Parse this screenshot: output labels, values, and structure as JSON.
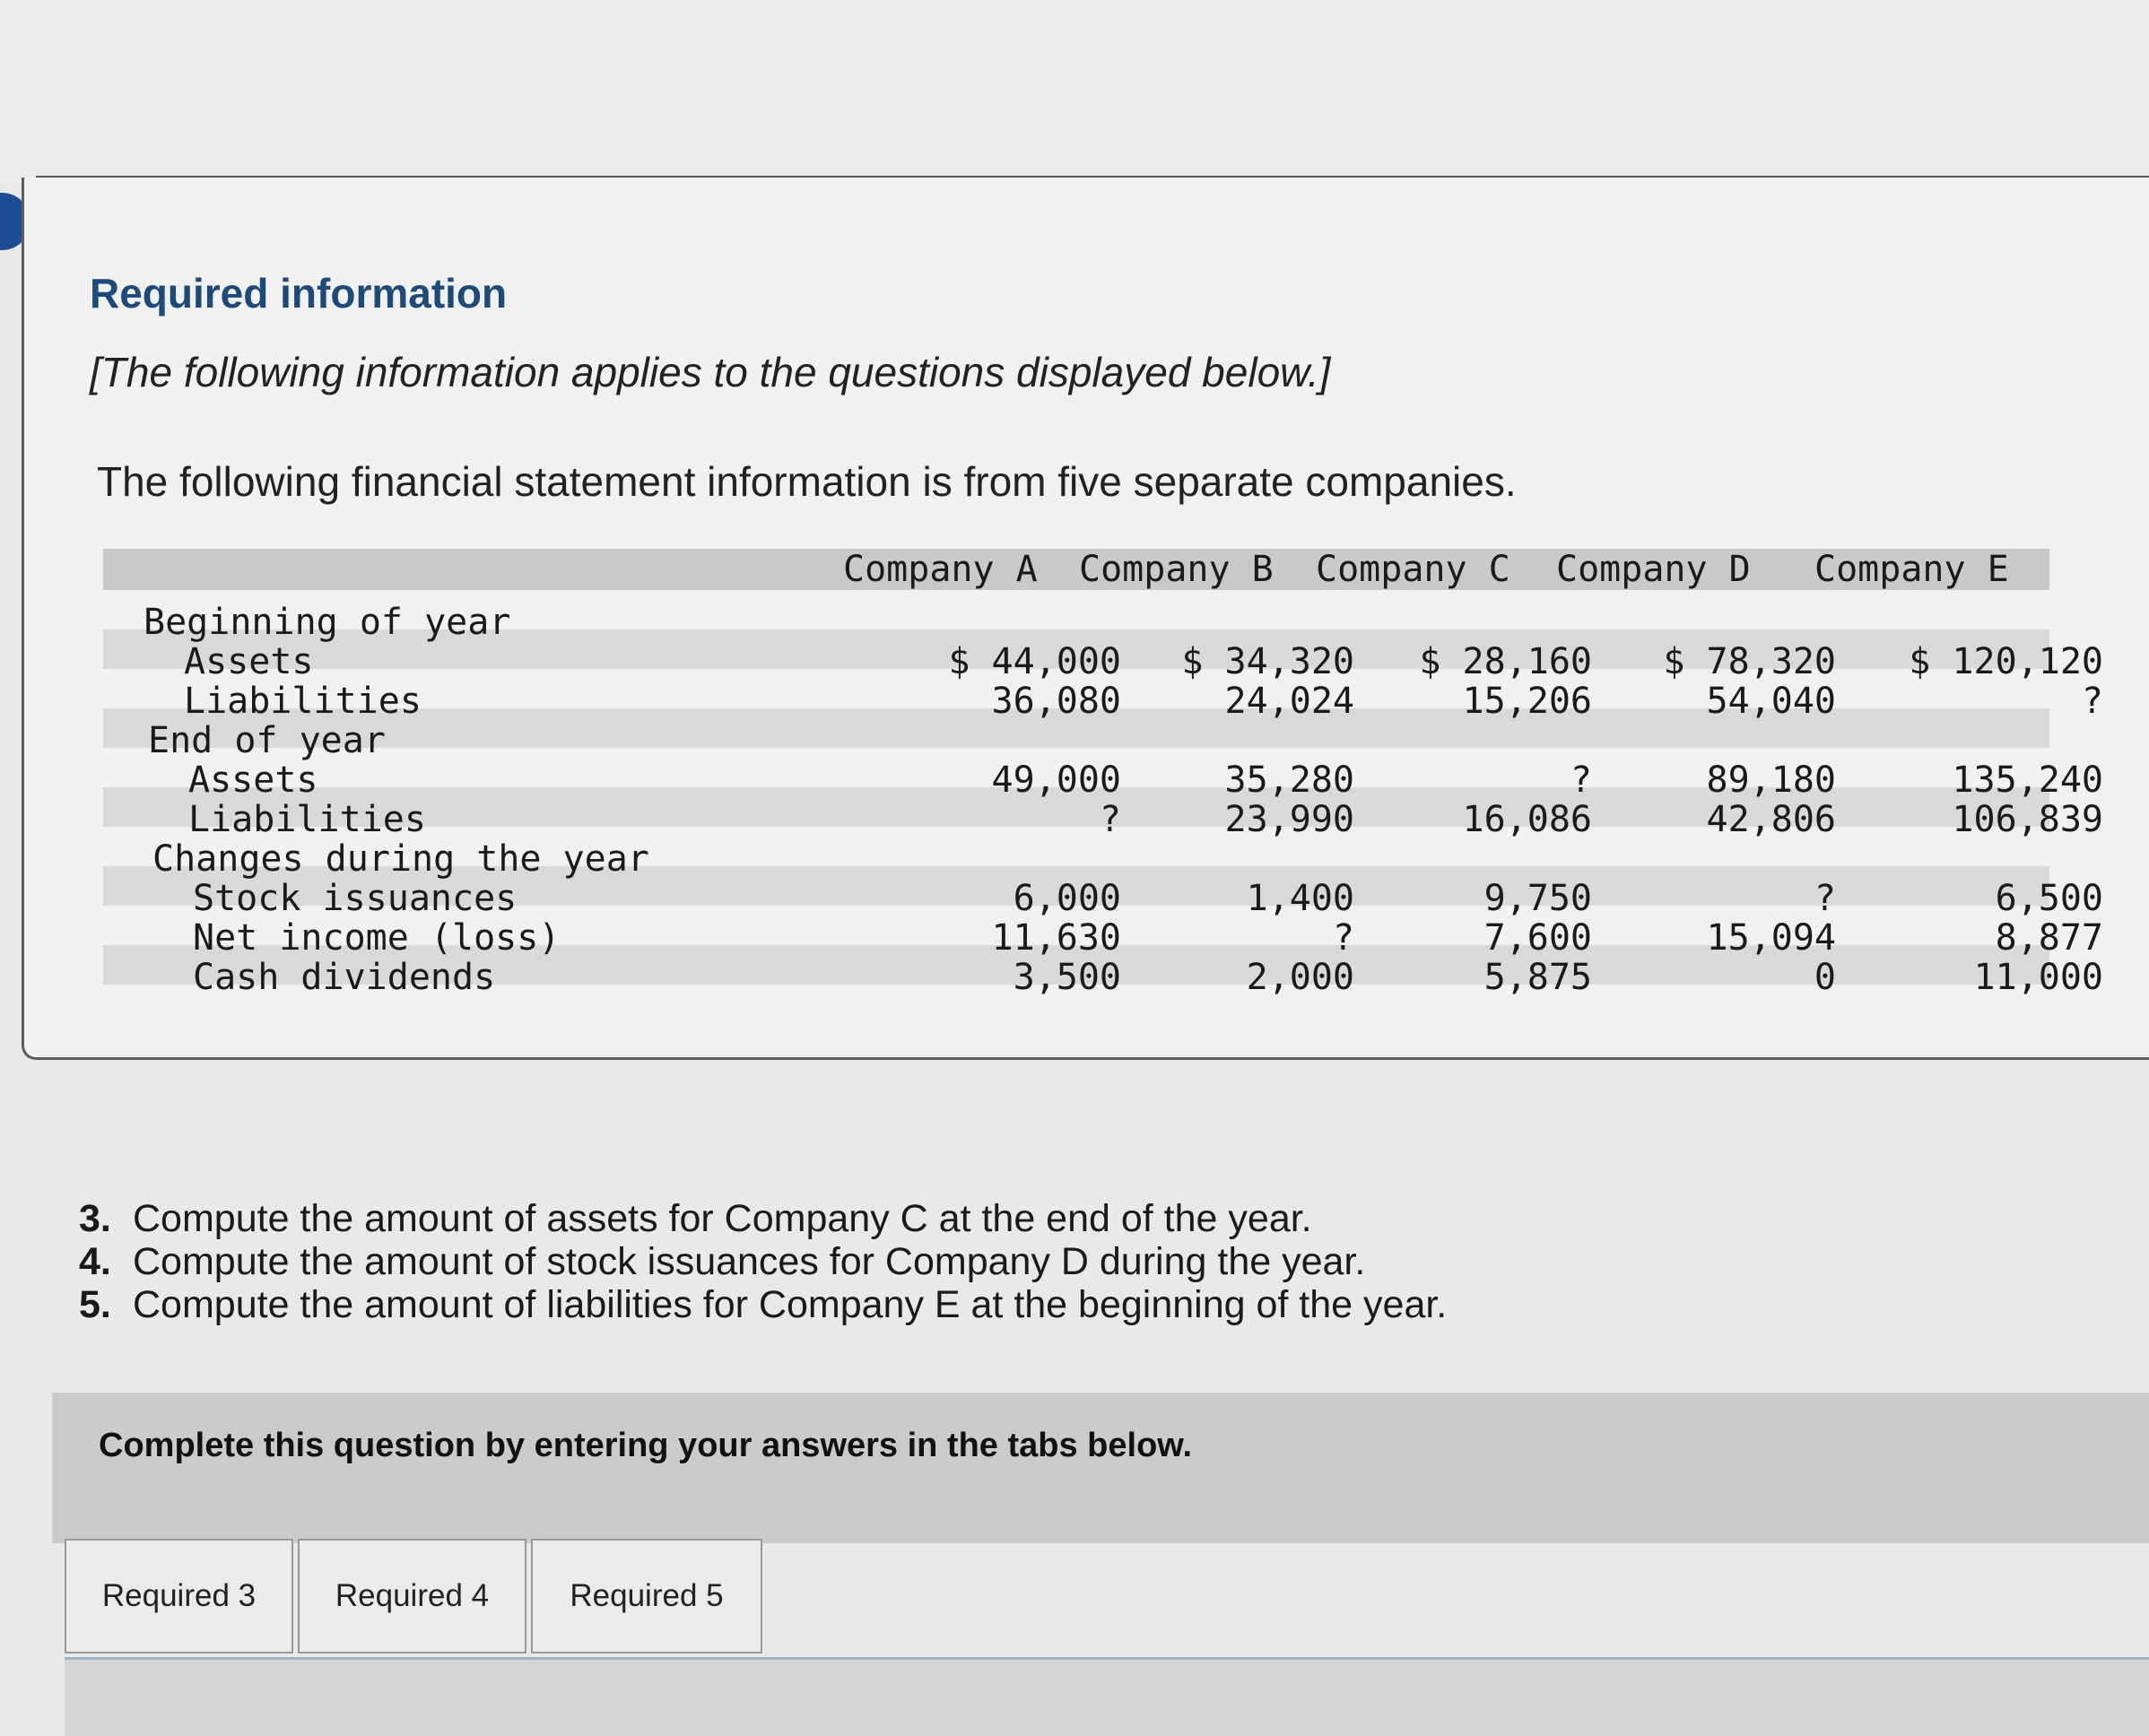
{
  "header": {
    "title": "Required information",
    "note": "[The following information applies to the questions displayed below.]"
  },
  "intro": "The following financial statement information is from five separate companies.",
  "table": {
    "columns": [
      "Company A",
      "Company B",
      "Company C",
      "Company D",
      "Company E"
    ],
    "rows": [
      {
        "label": "Beginning of year",
        "values": [
          "",
          "",
          "",
          "",
          ""
        ]
      },
      {
        "label": "Assets",
        "values": [
          "$ 44,000",
          "$ 34,320",
          "$ 28,160",
          "$ 78,320",
          "$ 120,120"
        ]
      },
      {
        "label": "Liabilities",
        "values": [
          "36,080",
          "24,024",
          "15,206",
          "54,040",
          "?"
        ]
      },
      {
        "label": "End of year",
        "values": [
          "",
          "",
          "",
          "",
          ""
        ]
      },
      {
        "label": "Assets",
        "values": [
          "49,000",
          "35,280",
          "?",
          "89,180",
          "135,240"
        ]
      },
      {
        "label": "Liabilities",
        "values": [
          "?",
          "23,990",
          "16,086",
          "42,806",
          "106,839"
        ]
      },
      {
        "label": "Changes during the year",
        "values": [
          "",
          "",
          "",
          "",
          ""
        ]
      },
      {
        "label": "Stock issuances",
        "values": [
          "6,000",
          "1,400",
          "9,750",
          "?",
          "6,500"
        ]
      },
      {
        "label": "Net income (loss)",
        "values": [
          "11,630",
          "?",
          "7,600",
          "15,094",
          "8,877"
        ]
      },
      {
        "label": "Cash dividends",
        "values": [
          "3,500",
          "2,000",
          "5,875",
          "0",
          "11,000"
        ]
      }
    ]
  },
  "questions": [
    {
      "num": "3.",
      "text": "Compute the amount of assets for Company C at the end of the year."
    },
    {
      "num": "4.",
      "text": "Compute the amount of stock issuances for Company D during the year."
    },
    {
      "num": "5.",
      "text": "Compute the amount of liabilities for Company E at the beginning of the year."
    }
  ],
  "instruction": "Complete this question by entering your answers in the tabs below.",
  "tabs": [
    "Required 3",
    "Required 4",
    "Required 5"
  ],
  "colors": {
    "heading": "#1d4a78",
    "marker": "#1d4c94"
  }
}
